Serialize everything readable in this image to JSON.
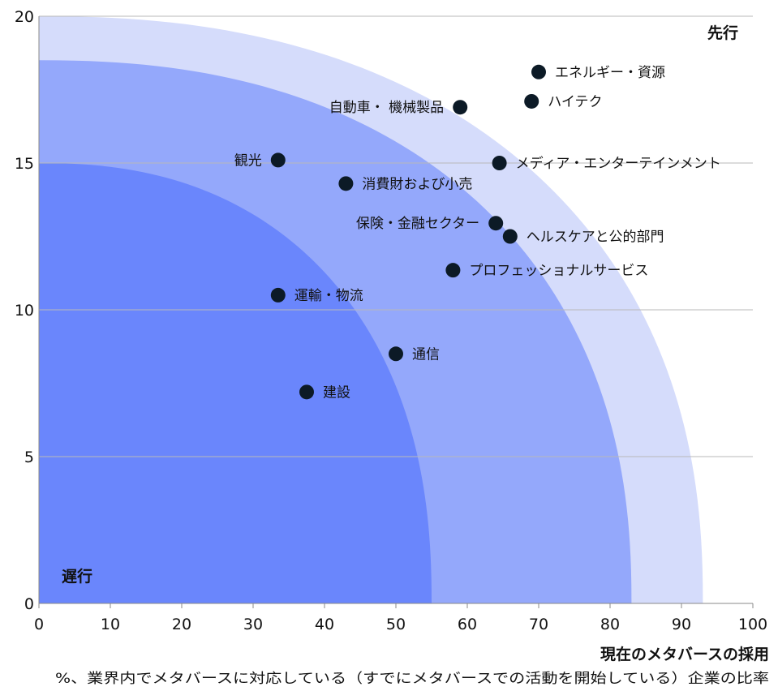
{
  "chart_data": {
    "type": "scatter",
    "xlabel": "現在のメタバースの採用",
    "subtitle": "%、業界内でメタバースに対応している（すでにメタバースでの活動を開始している）企業の比率",
    "ylabel": "",
    "xlim": [
      0,
      100
    ],
    "ylim": [
      0,
      20
    ],
    "x_ticks": [
      0,
      10,
      20,
      30,
      40,
      50,
      60,
      70,
      80,
      90,
      100
    ],
    "y_ticks": [
      0,
      5,
      10,
      15,
      20
    ],
    "grid": "horizontal",
    "corner_labels": {
      "top_right": "先行",
      "bottom_left": "遅行"
    },
    "zones": [
      {
        "x_intercept": 93,
        "y_intercept": 20,
        "color": "#d5dcfb"
      },
      {
        "x_intercept": 83,
        "y_intercept": 18.5,
        "color": "#94a8fb"
      },
      {
        "x_intercept": 55,
        "y_intercept": 15,
        "color": "#6a86fc"
      }
    ],
    "marker_color": "#0c1a26",
    "points": [
      {
        "label": "エネルギー・資源",
        "x": 70,
        "y": 18.1,
        "label_side": "right"
      },
      {
        "label": "自動車・ 機械製品",
        "x": 59,
        "y": 16.9,
        "label_side": "left"
      },
      {
        "label": "ハイテク",
        "x": 69,
        "y": 17.1,
        "label_side": "right"
      },
      {
        "label": "観光",
        "x": 33.5,
        "y": 15.1,
        "label_side": "left"
      },
      {
        "label": "メディア・エンターテインメント",
        "x": 64.5,
        "y": 15.0,
        "label_side": "right"
      },
      {
        "label": "消費財および小売",
        "x": 43,
        "y": 14.3,
        "label_side": "right"
      },
      {
        "label": "保険・金融セクター",
        "x": 64,
        "y": 12.95,
        "label_side": "left"
      },
      {
        "label": "ヘルスケアと公的部門",
        "x": 66,
        "y": 12.5,
        "label_side": "right"
      },
      {
        "label": "プロフェッショナルサービス",
        "x": 58,
        "y": 11.35,
        "label_side": "right"
      },
      {
        "label": "運輸・物流",
        "x": 33.5,
        "y": 10.5,
        "label_side": "right"
      },
      {
        "label": "通信",
        "x": 50,
        "y": 8.5,
        "label_side": "right"
      },
      {
        "label": "建設",
        "x": 37.5,
        "y": 7.2,
        "label_side": "right"
      }
    ]
  }
}
